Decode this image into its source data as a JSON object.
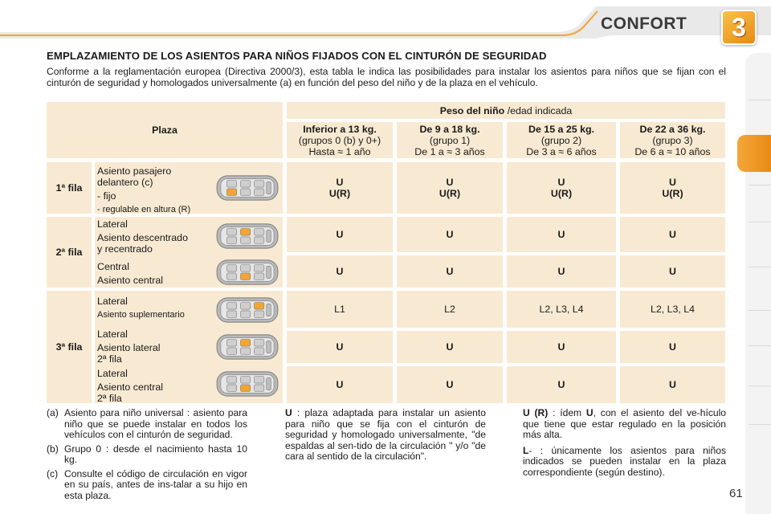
{
  "header": {
    "title": "CONFORT",
    "chapter": "3"
  },
  "section_title": "EMPLAZAMIENTO DE LOS ASIENTOS PARA NIÑOS FIJADOS CON EL CINTURÓN DE SEGURIDAD",
  "intro": "Conforme a la reglamentación europea (Directiva 2000/3), esta tabla le indica las posibilidades para instalar los asientos para niños que se fijan con el cinturón de seguridad y homologados universalmente (a) en función del peso del niño y de la plaza en el vehículo.",
  "table": {
    "plaza_header": "Plaza",
    "weight_header_bold": "Peso del niño",
    "weight_header_rest": " /edad indicada",
    "groups": [
      {
        "title": "Inferior a 13 kg.",
        "sub": "(grupos 0 (b) y 0+)",
        "age": "Hasta ≈ 1 año"
      },
      {
        "title": "De 9 a 18 kg.",
        "sub": "(grupo 1)",
        "age": "De 1 a ≈ 3 años"
      },
      {
        "title": "De 15 a 25 kg.",
        "sub": "(grupo 2)",
        "age": "De 3 a ≈ 6 años"
      },
      {
        "title": "De 22 a 36 kg.",
        "sub": "(grupo 3)",
        "age": "De 6 a ≈ 10 años"
      }
    ],
    "rows": {
      "row1": {
        "label": "1ª fila",
        "seat_lines": [
          "Asiento pasajero",
          "delantero (c)"
        ],
        "opt1": "- fijo",
        "opt2": "- regulable en altura (R)",
        "values_u": [
          "U",
          "U",
          "U",
          "U"
        ],
        "values_ur": [
          "U(R)",
          "U(R)",
          "U(R)",
          "U(R)"
        ]
      },
      "row2": {
        "label": "2ª fila",
        "a_kind": "Lateral",
        "a_lines": [
          "Asiento descentrado",
          "y recentrado"
        ],
        "a_values": [
          "U",
          "U",
          "U",
          "U"
        ],
        "b_kind": "Central",
        "b_line": "Asiento central",
        "b_values": [
          "U",
          "U",
          "U",
          "U"
        ]
      },
      "row3": {
        "label": "3ª fila",
        "a_kind": "Lateral",
        "a_line": "Asiento suplementario",
        "a_values": [
          "L1",
          "L2",
          "L2, L3, L4",
          "L2, L3, L4"
        ],
        "b_kind": "Lateral",
        "b_lines": [
          "Asiento lateral",
          "2ª fila"
        ],
        "b_values": [
          "U",
          "U",
          "U",
          "U"
        ],
        "c_kind": "Lateral",
        "c_lines": [
          "Asiento central",
          "2ª fila"
        ],
        "c_values": [
          "U",
          "U",
          "U",
          "U"
        ]
      }
    }
  },
  "notes": {
    "col1": [
      {
        "key": "(a)",
        "text": "Asiento para niño universal : asiento para niño que se puede instalar en todos los vehículos con el cinturón de seguridad."
      },
      {
        "key": "(b)",
        "text": "Grupo 0 : desde el nacimiento hasta 10 kg."
      },
      {
        "key": "(c)",
        "text": "Consulte el código de circulación en vigor en su país, antes de ins-talar a su hijo en esta plaza."
      }
    ],
    "col2": {
      "key": "U",
      "text": " : plaza adaptada para instalar un asiento para niño que se fija con el cinturón de seguridad y homologado universalmente, \"de espaldas al sen-tido de la circulación \" y/o \"de cara al sentido de la circulación\"."
    },
    "col3": [
      {
        "key": "U (R)",
        "text_before": " : ídem ",
        "key2": "U",
        "text_after": ", con el asiento del ve-hículo que tiene que estar regulado en la posición más alta."
      },
      {
        "key": "L",
        "text": "- : únicamente los asientos para niños indicados se pueden instalar en la plaza correspondiente (según destino)."
      }
    ]
  },
  "page_number": "61",
  "colors": {
    "accent": "#e88a14",
    "cell": "#f8ead2",
    "cell_light": "#fbf2e3"
  }
}
